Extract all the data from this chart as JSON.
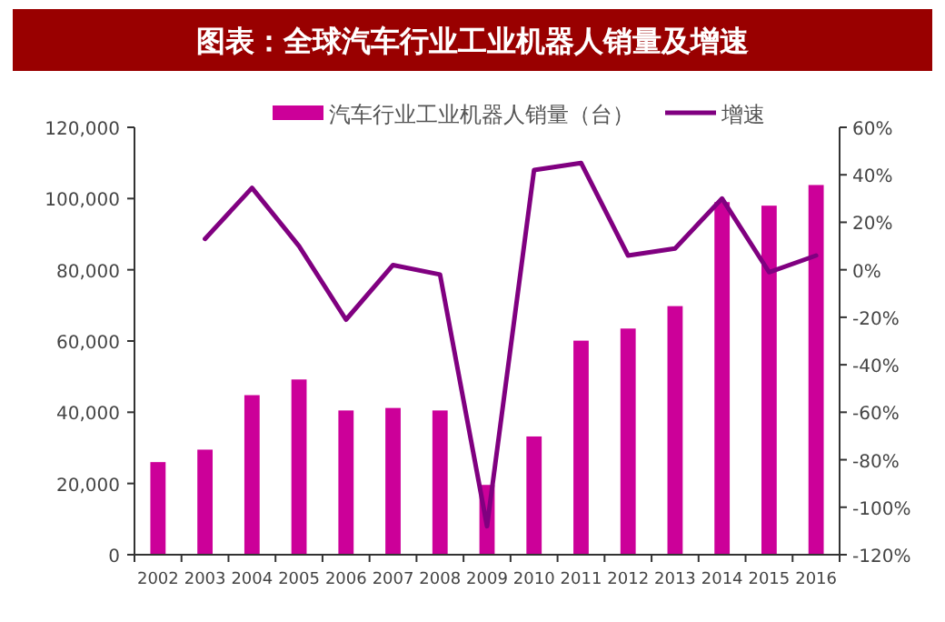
{
  "chart_data": {
    "type": "bar",
    "title": "图表：全球汽车行业工业机器人销量及增速",
    "categories": [
      "2002",
      "2003",
      "2004",
      "2005",
      "2006",
      "2007",
      "2008",
      "2009",
      "2010",
      "2011",
      "2012",
      "2013",
      "2014",
      "2015",
      "2016"
    ],
    "series": [
      {
        "name": "汽车行业工业机器人销量（台）",
        "color": "#cc0099",
        "values": [
          26000,
          29500,
          44800,
          49200,
          40500,
          41200,
          40500,
          19600,
          33200,
          60100,
          63500,
          69800,
          99000,
          98000,
          103800
        ]
      },
      {
        "name": "增速",
        "type": "line",
        "axis": "y2",
        "color": "#800080",
        "values": [
          null,
          13,
          34.5,
          10,
          -21,
          2,
          -2,
          -108,
          42,
          45,
          6,
          9,
          30,
          -1,
          6
        ]
      }
    ],
    "ylim": [
      0,
      120000
    ],
    "yticks": [
      {
        "value": 0,
        "label": "0"
      },
      {
        "value": 20000,
        "label": "20,000"
      },
      {
        "value": 40000,
        "label": "40,000"
      },
      {
        "value": 60000,
        "label": "60,000"
      },
      {
        "value": 80000,
        "label": "80,000"
      },
      {
        "value": 100000,
        "label": "100,000"
      },
      {
        "value": 120000,
        "label": "120,000"
      }
    ],
    "y2lim": [
      -120,
      60
    ],
    "y2ticks": [
      {
        "value": -120,
        "label": "-120%"
      },
      {
        "value": -100,
        "label": "-100%"
      },
      {
        "value": -80,
        "label": "-80%"
      },
      {
        "value": -60,
        "label": "-60%"
      },
      {
        "value": -40,
        "label": "-40%"
      },
      {
        "value": -20,
        "label": "-20%"
      },
      {
        "value": 0,
        "label": "0%"
      },
      {
        "value": 20,
        "label": "20%"
      },
      {
        "value": 40,
        "label": "40%"
      },
      {
        "value": 60,
        "label": "60%"
      }
    ],
    "legend": "top",
    "grid": false,
    "marker": "none",
    "line_style": "solid"
  }
}
